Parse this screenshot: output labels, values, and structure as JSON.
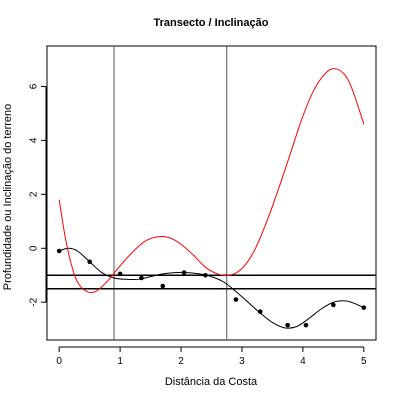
{
  "chart_data": {
    "type": "line",
    "title": "Transecto / Inclinação",
    "xlabel": "Distância da Costa",
    "ylabel": "Profundidade ou Inclinação do terreno",
    "xlim": [
      -0.2,
      5.2
    ],
    "ylim": [
      -3.4,
      7.5
    ],
    "x_ticks": [
      0,
      1,
      2,
      3,
      4,
      5
    ],
    "y_ticks": [
      -2,
      0,
      2,
      4,
      6
    ],
    "grid": false,
    "points": {
      "x": [
        0,
        0.5,
        1.0,
        1.35,
        1.7,
        2.05,
        2.4,
        2.9,
        3.3,
        3.75,
        4.05,
        4.5,
        5.0
      ],
      "y": [
        -0.1,
        -0.5,
        -0.95,
        -1.1,
        -1.4,
        -0.9,
        -1.0,
        -1.9,
        -2.35,
        -2.85,
        -2.85,
        -2.1,
        -2.2
      ]
    },
    "series": [
      {
        "color": "#000000",
        "x": [
          0,
          0.15,
          0.3,
          0.5,
          0.7,
          0.9,
          1.1,
          1.3,
          1.5,
          1.7,
          1.9,
          2.1,
          2.3,
          2.5,
          2.7,
          2.9,
          3.1,
          3.3,
          3.5,
          3.7,
          3.9,
          4.1,
          4.3,
          4.5,
          4.7,
          4.85,
          5.0
        ],
        "y": [
          -0.1,
          0.0,
          -0.1,
          -0.5,
          -0.9,
          -1.1,
          -1.15,
          -1.15,
          -1.05,
          -0.95,
          -0.9,
          -0.9,
          -0.95,
          -1.05,
          -1.25,
          -1.6,
          -2.0,
          -2.4,
          -2.75,
          -2.95,
          -2.9,
          -2.6,
          -2.25,
          -2.0,
          -1.95,
          -2.05,
          -2.2
        ]
      },
      {
        "color": "#ff0000",
        "x": [
          0,
          0.1,
          0.2,
          0.3,
          0.45,
          0.6,
          0.8,
          1.0,
          1.2,
          1.4,
          1.6,
          1.8,
          2.0,
          2.2,
          2.4,
          2.6,
          2.8,
          3.0,
          3.2,
          3.4,
          3.6,
          3.8,
          4.0,
          4.2,
          4.4,
          4.55,
          4.7,
          4.8,
          4.9,
          5.0
        ],
        "y": [
          1.8,
          0.4,
          -0.6,
          -1.25,
          -1.6,
          -1.6,
          -1.2,
          -0.65,
          -0.15,
          0.25,
          0.42,
          0.4,
          0.15,
          -0.25,
          -0.7,
          -0.95,
          -1.0,
          -0.75,
          -0.1,
          0.95,
          2.2,
          3.55,
          4.9,
          5.95,
          6.55,
          6.65,
          6.4,
          5.95,
          5.3,
          4.6
        ]
      }
    ],
    "vlines": [
      0.9,
      2.75
    ],
    "hlines": [
      -1.0,
      -1.5
    ]
  }
}
